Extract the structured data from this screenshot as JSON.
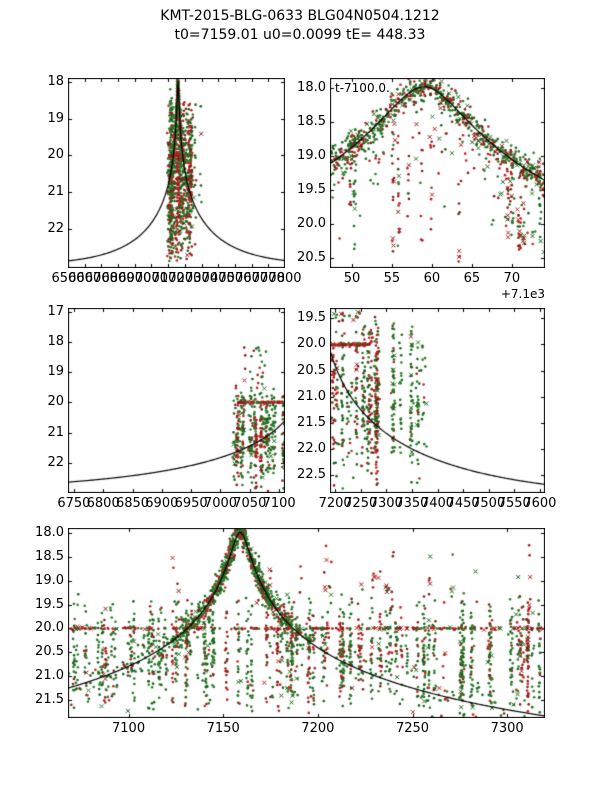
{
  "title": "KMT-2015-BLG-0633 BLG04N0504.1212",
  "subtitle": "t0=7159.01 u0=0.0099 tE= 448.33",
  "model": {
    "t0": 7159.01,
    "u0": 0.0099,
    "tE": 448.33,
    "baseline_mag": 23.0,
    "peak_mag": 18.0
  },
  "colors": {
    "greens": [
      "#1a651a",
      "#2e7d2e"
    ],
    "reds": [
      "#8f1a1a",
      "#bb2222"
    ],
    "line": "#000000",
    "background": "#ffffff"
  },
  "chart_data": [
    {
      "name": "top-left",
      "type": "scatter",
      "xlim": [
        6500,
        7800
      ],
      "ylim_mag": [
        17.9,
        23.05
      ],
      "xticks": {
        "values": [
          6500,
          6600,
          6700,
          6800,
          6900,
          7000,
          7100,
          7200,
          7300,
          7400,
          7500,
          7600,
          7700,
          7800
        ],
        "labels": [
          "6500",
          "6600",
          "6700",
          "6800",
          "6900",
          "7000",
          "7100",
          "7200",
          "7300",
          "7400",
          "7500",
          "7600",
          "7700",
          "7800"
        ]
      },
      "yticks": {
        "values": [
          18,
          19,
          20,
          21,
          22
        ],
        "labels": [
          "18",
          "19",
          "20",
          "21",
          "22"
        ]
      },
      "clusters": [
        {
          "kind": "columns",
          "x0": 7098,
          "x1": 7240,
          "cols": 55,
          "nmin": 6,
          "nmax": 26,
          "mag0": 18.15,
          "mag1": 23.0,
          "fracRed": 0.3,
          "cross": 0.05
        },
        {
          "kind": "curve",
          "x0": 7128,
          "x1": 7192,
          "mu": 7159,
          "sd": 15,
          "n": 320,
          "sigma": 0.12,
          "fracRed": 0.3,
          "cross": 0.04
        },
        {
          "kind": "band",
          "y": 20.0,
          "x0": 7105,
          "x1": 7240,
          "n": 55,
          "fracRed": 0.7,
          "cross": 0.2
        },
        {
          "kind": "columns",
          "x0": 7242,
          "x1": 7302,
          "cols": 7,
          "nmin": 2,
          "nmax": 8,
          "mag0": 18.3,
          "mag1": 22.6,
          "fracRed": 0.45,
          "cross": 0.1
        }
      ]
    },
    {
      "name": "top-right",
      "type": "scatter",
      "xlim": [
        7147.25,
        7174.15
      ],
      "ylim_mag": [
        17.86,
        20.65
      ],
      "annotation": "t-7100.0.",
      "offset_label": "+7.1e3",
      "xticks": {
        "values": [
          7150,
          7155,
          7160,
          7165,
          7170
        ],
        "labels": [
          "50",
          "55",
          "60",
          "65",
          "70"
        ]
      },
      "yticks": {
        "values": [
          18.0,
          18.5,
          19.0,
          19.5,
          20.0,
          20.5
        ],
        "labels": [
          "18.0",
          "18.5",
          "19.0",
          "19.5",
          "20.0",
          "20.5"
        ]
      },
      "clusters": [
        {
          "kind": "curve",
          "x0": 7147.3,
          "x1": 7174.1,
          "n": 650,
          "sigma": 0.1,
          "fracRed": 0.38,
          "cross": 0.12
        },
        {
          "kind": "curve",
          "x0": 7147.3,
          "x1": 7174.1,
          "n": 180,
          "sigma": 0.12,
          "tailFrac": 0.9,
          "tailMag": 1.6,
          "fracRed": 0.45,
          "cross": 0.15
        },
        {
          "kind": "columns",
          "x0": 7147.5,
          "x1": 7173.8,
          "cols": 13,
          "nmin": 5,
          "nmax": 18,
          "mag0": 18.5,
          "mag1": 20.7,
          "fracRed": 0.5,
          "cross": 0.12
        },
        {
          "kind": "columns",
          "x0": 7169.2,
          "x1": 7171.6,
          "cols": 3,
          "nmin": 8,
          "nmax": 14,
          "mag0": 19.6,
          "mag1": 20.6,
          "fracRed": 0.85,
          "cross": 0.2
        }
      ]
    },
    {
      "name": "mid-left",
      "type": "scatter",
      "xlim": [
        6740,
        7110
      ],
      "ylim_mag": [
        16.87,
        23.0
      ],
      "xticks": {
        "values": [
          6750,
          6800,
          6850,
          6900,
          6950,
          7000,
          7050,
          7100
        ],
        "labels": [
          "6750",
          "6800",
          "6850",
          "6900",
          "6950",
          "7000",
          "7050",
          "7100"
        ]
      },
      "yticks": {
        "values": [
          17,
          18,
          19,
          20,
          21,
          22
        ],
        "labels": [
          "17",
          "18",
          "19",
          "20",
          "21",
          "22"
        ]
      },
      "clusters": [
        {
          "kind": "columns",
          "x0": 7022,
          "x1": 7108,
          "cols": 26,
          "nmin": 6,
          "nmax": 28,
          "mag0": 19.3,
          "mag1": 23.0,
          "fracRed": 0.3,
          "cross": 0.05
        },
        {
          "kind": "scatter",
          "x0": 7040,
          "x1": 7078,
          "n": 22,
          "mag0": 18.15,
          "mag1": 19.4,
          "fracRed": 0.5,
          "cross": 0.15
        },
        {
          "kind": "band",
          "y": 20.0,
          "x0": 7030,
          "x1": 7108,
          "n": 85,
          "fracRed": 0.75,
          "cross": 0.12
        }
      ]
    },
    {
      "name": "mid-right",
      "type": "scatter",
      "xlim": [
        7190,
        7610
      ],
      "ylim_mag": [
        19.3,
        22.85
      ],
      "xticks": {
        "values": [
          7200,
          7250,
          7300,
          7350,
          7400,
          7450,
          7500,
          7550,
          7600
        ],
        "labels": [
          "7200",
          "7250",
          "7300",
          "7350",
          "7400",
          "7450",
          "7500",
          "7550",
          "7600"
        ]
      },
      "yticks": {
        "values": [
          19.5,
          20.0,
          20.5,
          21.0,
          21.5,
          22.0,
          22.5
        ],
        "labels": [
          "19.5",
          "20.0",
          "20.5",
          "21.0",
          "21.5",
          "22.0",
          "22.5"
        ]
      },
      "clusters": [
        {
          "kind": "columns",
          "x0": 7193,
          "x1": 7378,
          "cols": 34,
          "nmin": 6,
          "nmax": 28,
          "mag0": 19.35,
          "mag1": 22.8,
          "fracRed": 0.3,
          "cross": 0.05
        },
        {
          "kind": "band",
          "y": 20.0,
          "x0": 7191,
          "x1": 7268,
          "n": 75,
          "fracRed": 0.8,
          "cross": 0.12
        },
        {
          "kind": "scatter",
          "x0": 7196,
          "x1": 7250,
          "n": 18,
          "mag0": 19.35,
          "mag1": 19.6,
          "fracRed": 0.6,
          "cross": 0.2
        }
      ]
    },
    {
      "name": "bottom",
      "type": "scatter",
      "xlim": [
        7068,
        7320
      ],
      "ylim_mag": [
        17.895,
        21.88
      ],
      "xticks": {
        "values": [
          7100,
          7150,
          7200,
          7250,
          7300
        ],
        "labels": [
          "7100",
          "7150",
          "7200",
          "7250",
          "7300"
        ]
      },
      "yticks": {
        "values": [
          18.0,
          18.5,
          19.0,
          19.5,
          20.0,
          20.5,
          21.0,
          21.5
        ],
        "labels": [
          "18.0",
          "18.5",
          "19.0",
          "19.5",
          "20.0",
          "20.5",
          "21.0",
          "21.5"
        ]
      },
      "clusters": [
        {
          "kind": "columns",
          "x0": 7070,
          "x1": 7318,
          "cols": 110,
          "nmin": 3,
          "nmax": 24,
          "mag0": 19.2,
          "mag1": 21.85,
          "fracRed": 0.22,
          "cross": 0.04
        },
        {
          "kind": "columns",
          "x0": 7118,
          "x1": 7312,
          "cols": 18,
          "nmin": 2,
          "nmax": 7,
          "mag0": 18.1,
          "mag1": 19.9,
          "fracRed": 0.85,
          "cross": 0.3
        },
        {
          "kind": "curve",
          "x0": 7122,
          "x1": 7196,
          "mu": 7159,
          "sd": 16,
          "n": 850,
          "sigma": 0.13,
          "fracRed": 0.3,
          "cross": 0.05
        },
        {
          "kind": "band",
          "y": 20.0,
          "x0": 7069,
          "x1": 7319,
          "n": 240,
          "fracRed": 0.7,
          "cross": 0.25
        },
        {
          "kind": "curve",
          "x0": 7068,
          "x1": 7128,
          "n": 110,
          "sigma": 0.22,
          "fracRed": 0.2,
          "cross": 0.05
        },
        {
          "kind": "curve",
          "x0": 7192,
          "x1": 7319,
          "n": 110,
          "sigma": 0.28,
          "fracRed": 0.2,
          "cross": 0.05
        }
      ]
    }
  ]
}
